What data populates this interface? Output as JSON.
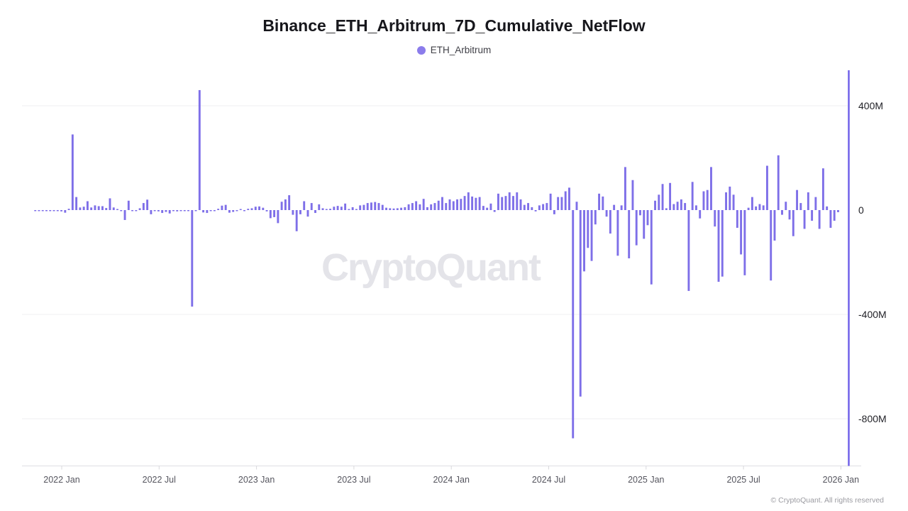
{
  "title": "Binance_ETH_Arbitrum_7D_Cumulative_NetFlow",
  "legend": {
    "label": "ETH_Arbitrum",
    "color": "#8b7ceb"
  },
  "watermark": "CryptoQuant",
  "copyright": "© CryptoQuant. All rights reserved",
  "colors": {
    "bar": "#7e6fe8",
    "right_axis_line": "#6c5ce8",
    "grid": "#efeff2",
    "bottom_axis": "#dfdfe3",
    "tick": "#d8d8dc",
    "x_label": "#55555e",
    "y_label": "#222228"
  },
  "chart_data": {
    "type": "bar",
    "title": "Binance_ETH_Arbitrum_7D_Cumulative_NetFlow",
    "series_name": "ETH_Arbitrum",
    "value_unit": "millions",
    "x_unit": "weeks (7D bars), first bar ≈ 7 weeks before 2022 Jan",
    "ylim": [
      -900,
      520
    ],
    "grid": "horizontal only",
    "legend_position": "top center",
    "y_ticks": [
      {
        "label": "400M",
        "value": 400
      },
      {
        "label": "0",
        "value": 0
      },
      {
        "label": "-400M",
        "value": -400
      },
      {
        "label": "-800M",
        "value": -800
      }
    ],
    "x_ticks": [
      {
        "label": "2022 Jan",
        "month": 0
      },
      {
        "label": "2022 Jul",
        "month": 6
      },
      {
        "label": "2023 Jan",
        "month": 12
      },
      {
        "label": "2023 Jul",
        "month": 18
      },
      {
        "label": "2024 Jan",
        "month": 24
      },
      {
        "label": "2024 Jul",
        "month": 30
      },
      {
        "label": "2025 Jan",
        "month": 36
      },
      {
        "label": "2025 Jul",
        "month": 42
      },
      {
        "label": "2026 Jan",
        "month": 48
      }
    ],
    "values": [
      -3,
      -3,
      -3,
      -4,
      -3,
      -4,
      -3,
      -5,
      -10,
      5,
      290,
      50,
      10,
      13,
      34,
      10,
      18,
      15,
      15,
      8,
      45,
      10,
      4,
      -2,
      -38,
      36,
      -3,
      -4,
      7,
      27,
      40,
      -16,
      -2,
      -5,
      -11,
      -7,
      -13,
      -4,
      -5,
      -4,
      -3,
      -2,
      -370,
      -2,
      460,
      -9,
      -11,
      -3,
      -2,
      5,
      17,
      20,
      -10,
      -7,
      -2,
      2,
      -4,
      5,
      7,
      13,
      14,
      9,
      -5,
      -31,
      -27,
      -50,
      32,
      41,
      57,
      -18,
      -81,
      -16,
      34,
      -25,
      27,
      -11,
      22,
      7,
      4,
      5,
      13,
      16,
      13,
      25,
      4,
      11,
      4,
      18,
      20,
      27,
      29,
      31,
      27,
      20,
      9,
      7,
      6,
      7,
      9,
      11,
      22,
      27,
      34,
      22,
      43,
      11,
      22,
      27,
      36,
      50,
      27,
      41,
      34,
      41,
      43,
      54,
      68,
      52,
      47,
      50,
      16,
      9,
      25,
      -7,
      63,
      50,
      54,
      68,
      54,
      68,
      41,
      20,
      27,
      11,
      -5,
      18,
      23,
      27,
      63,
      -16,
      50,
      50,
      72,
      86,
      -875,
      32,
      -715,
      -235,
      -145,
      -195,
      -55,
      63,
      52,
      -25,
      -90,
      20,
      -175,
      18,
      165,
      -185,
      115,
      -135,
      -20,
      -110,
      -58,
      -285,
      36,
      59,
      100,
      7,
      104,
      23,
      32,
      41,
      27,
      -310,
      108,
      18,
      -32,
      72,
      77,
      165,
      -63,
      -275,
      -255,
      68,
      90,
      59,
      -68,
      -170,
      -250,
      9,
      50,
      14,
      23,
      18,
      170,
      -270,
      -117,
      210,
      -18,
      32,
      -36,
      -100,
      77,
      27,
      -72,
      68,
      -41,
      50,
      -72,
      160,
      14,
      -68,
      -41,
      -8
    ]
  }
}
